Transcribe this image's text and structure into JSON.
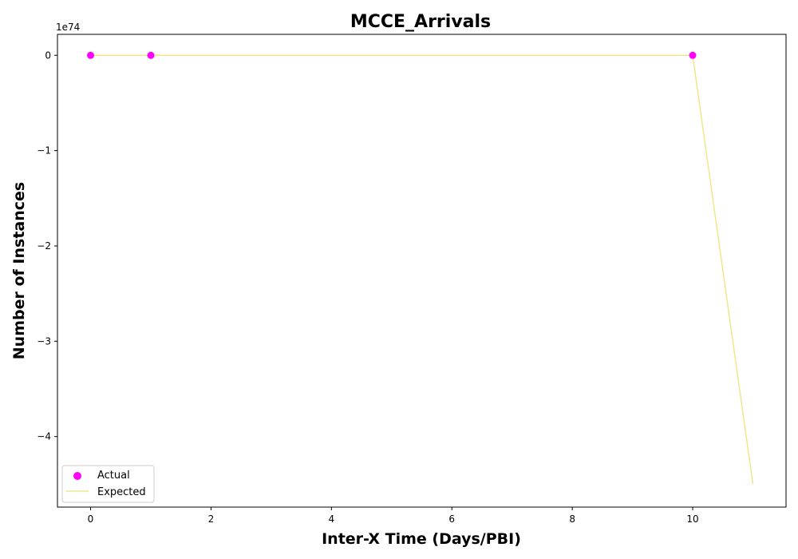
{
  "chart_data": {
    "type": "scatter",
    "title": "MCCE_Arrivals",
    "xlabel": "Inter-X Time (Days/PBI)",
    "ylabel": "Number of Instances",
    "y_offset_text": "1e74",
    "xlim": [
      -0.55,
      11.55
    ],
    "ylim": [
      -4.74,
      0.22
    ],
    "x_ticks": [
      0,
      2,
      4,
      6,
      8,
      10
    ],
    "x_tick_labels": [
      "0",
      "2",
      "4",
      "6",
      "8",
      "10"
    ],
    "y_ticks": [
      0,
      -1,
      -2,
      -3,
      -4
    ],
    "y_tick_labels": [
      "0",
      "−1",
      "−2",
      "−3",
      "−4"
    ],
    "grid": false,
    "legend_position": "lower-left",
    "series": [
      {
        "name": "Actual",
        "kind": "scatter",
        "color": "#ff00ff",
        "x": [
          0,
          1,
          10
        ],
        "y": [
          0,
          0,
          0
        ]
      },
      {
        "name": "Expected",
        "kind": "line",
        "color": "#f0e68c",
        "x": [
          0,
          1,
          10,
          11
        ],
        "y": [
          0,
          0,
          0,
          -4.5
        ]
      }
    ]
  }
}
